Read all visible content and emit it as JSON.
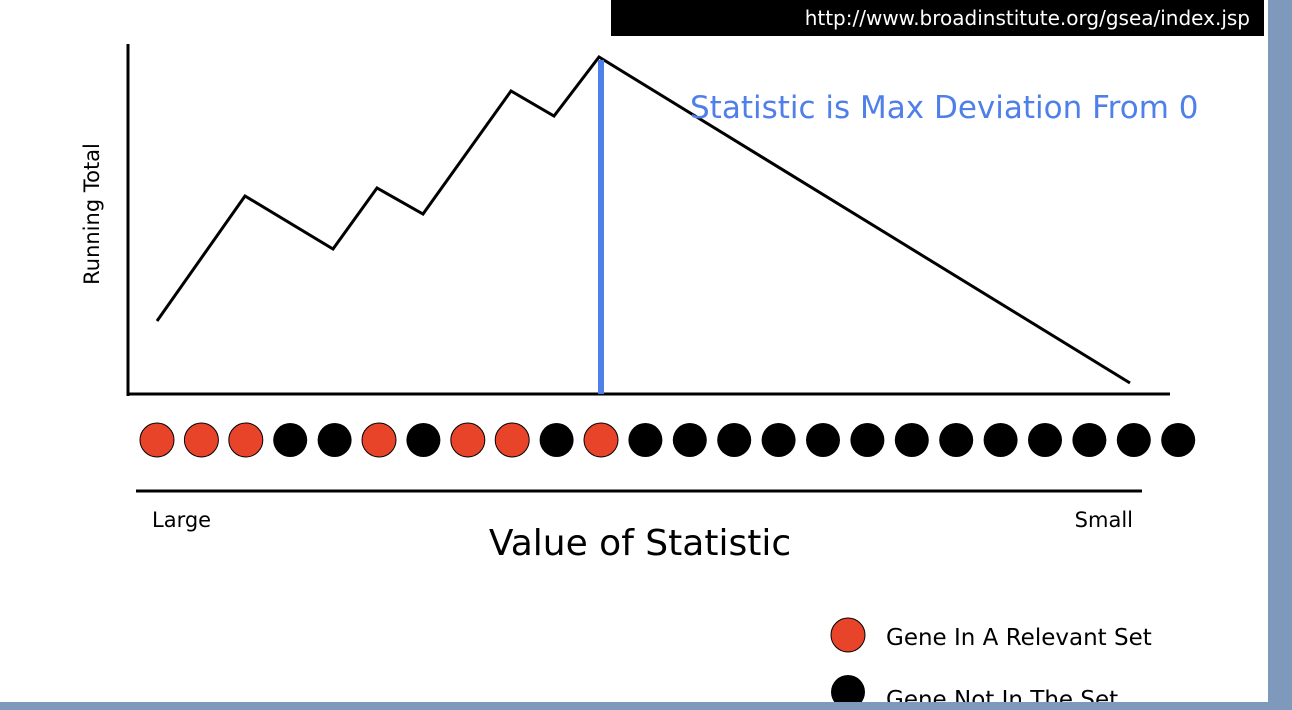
{
  "header": {
    "url_text": "http://www.broadinstitute.org/gsea/index.jsp"
  },
  "plot": {
    "ylabel": "Running Total",
    "annotation": "Statistic is Max Deviation From 0",
    "line_color": "#000000",
    "max_marker_color": "#4f7fe8"
  },
  "axis": {
    "left_label": "Large",
    "right_label": "Small",
    "title": "Value of Statistic"
  },
  "genes": {
    "sequence": [
      "relevant",
      "relevant",
      "relevant",
      "other",
      "other",
      "relevant",
      "other",
      "relevant",
      "relevant",
      "other",
      "relevant",
      "other",
      "other",
      "other",
      "other",
      "other",
      "other",
      "other",
      "other",
      "other",
      "other",
      "other",
      "other",
      "other"
    ],
    "relevant_color": "#e8442a",
    "other_color": "#000000"
  },
  "legend": {
    "items": [
      {
        "label": "Gene In A Relevant Set",
        "color": "#e8442a"
      },
      {
        "label": "Gene Not In The Set",
        "color": "#000000"
      }
    ]
  },
  "frame": {
    "border_color": "#7f99bd"
  }
}
